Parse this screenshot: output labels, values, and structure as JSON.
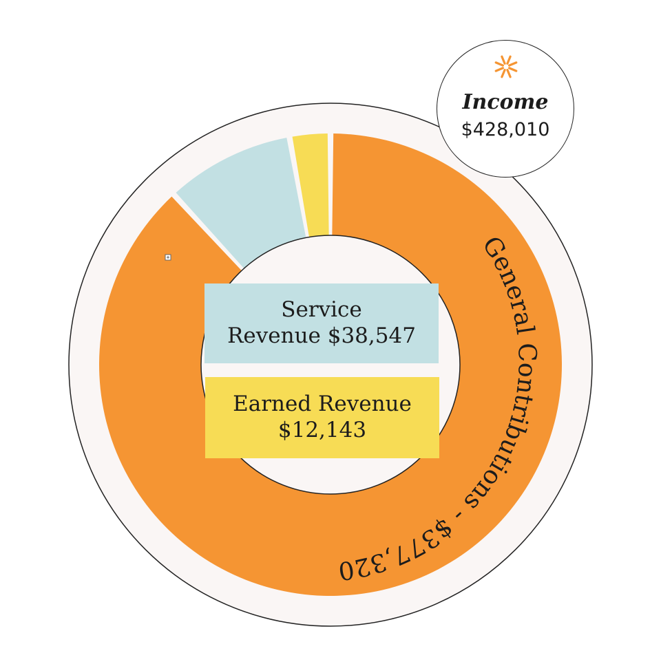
{
  "colors": {
    "general": "#f59533",
    "service": "#c2e0e3",
    "earned": "#f7dc55",
    "ring_bg": "#faf6f5",
    "outline": "#222222",
    "icon": "#f59533"
  },
  "income": {
    "icon": "asterisk-sparkle-icon",
    "title": "Income",
    "total": "$428,010"
  },
  "chart_data": {
    "type": "pie",
    "title": "Income",
    "total": 428010,
    "slices": [
      {
        "label": "General Contributions",
        "value": 377320,
        "display": "General Contributions - $377,320",
        "color": "#f59533"
      },
      {
        "label": "Service Revenue",
        "value": 38547,
        "display_lines": [
          "Service",
          "Revenue $38,547"
        ],
        "color": "#c2e0e3"
      },
      {
        "label": "Earned Revenue",
        "value": 12143,
        "display_lines": [
          "Earned Revenue",
          "$12,143"
        ],
        "color": "#f7dc55"
      }
    ]
  }
}
